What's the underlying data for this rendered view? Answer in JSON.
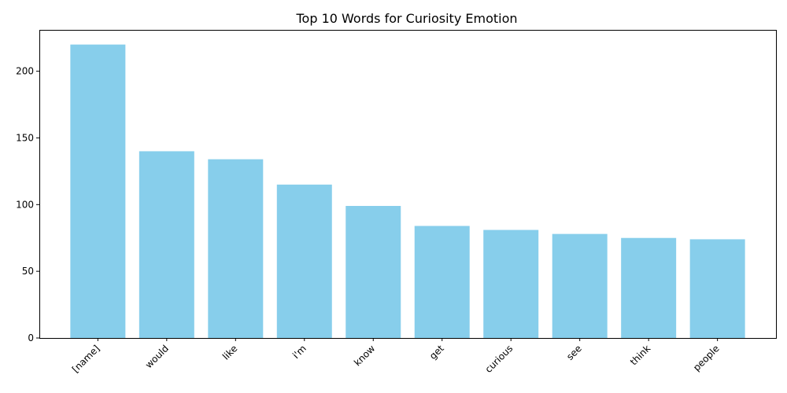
{
  "chart_data": {
    "type": "bar",
    "title": "Top 10 Words for Curiosity Emotion",
    "xlabel": "",
    "ylabel": "",
    "categories": [
      "[name]",
      "would",
      "like",
      "i'm",
      "know",
      "get",
      "curious",
      "see",
      "think",
      "people"
    ],
    "values": [
      220,
      140,
      134,
      115,
      99,
      84,
      81,
      78,
      75,
      74
    ],
    "ylim": [
      0,
      231
    ],
    "yticks": [
      0,
      50,
      100,
      150,
      200
    ],
    "bar_color": "#87CEEB",
    "grid": false,
    "legend": "none"
  }
}
